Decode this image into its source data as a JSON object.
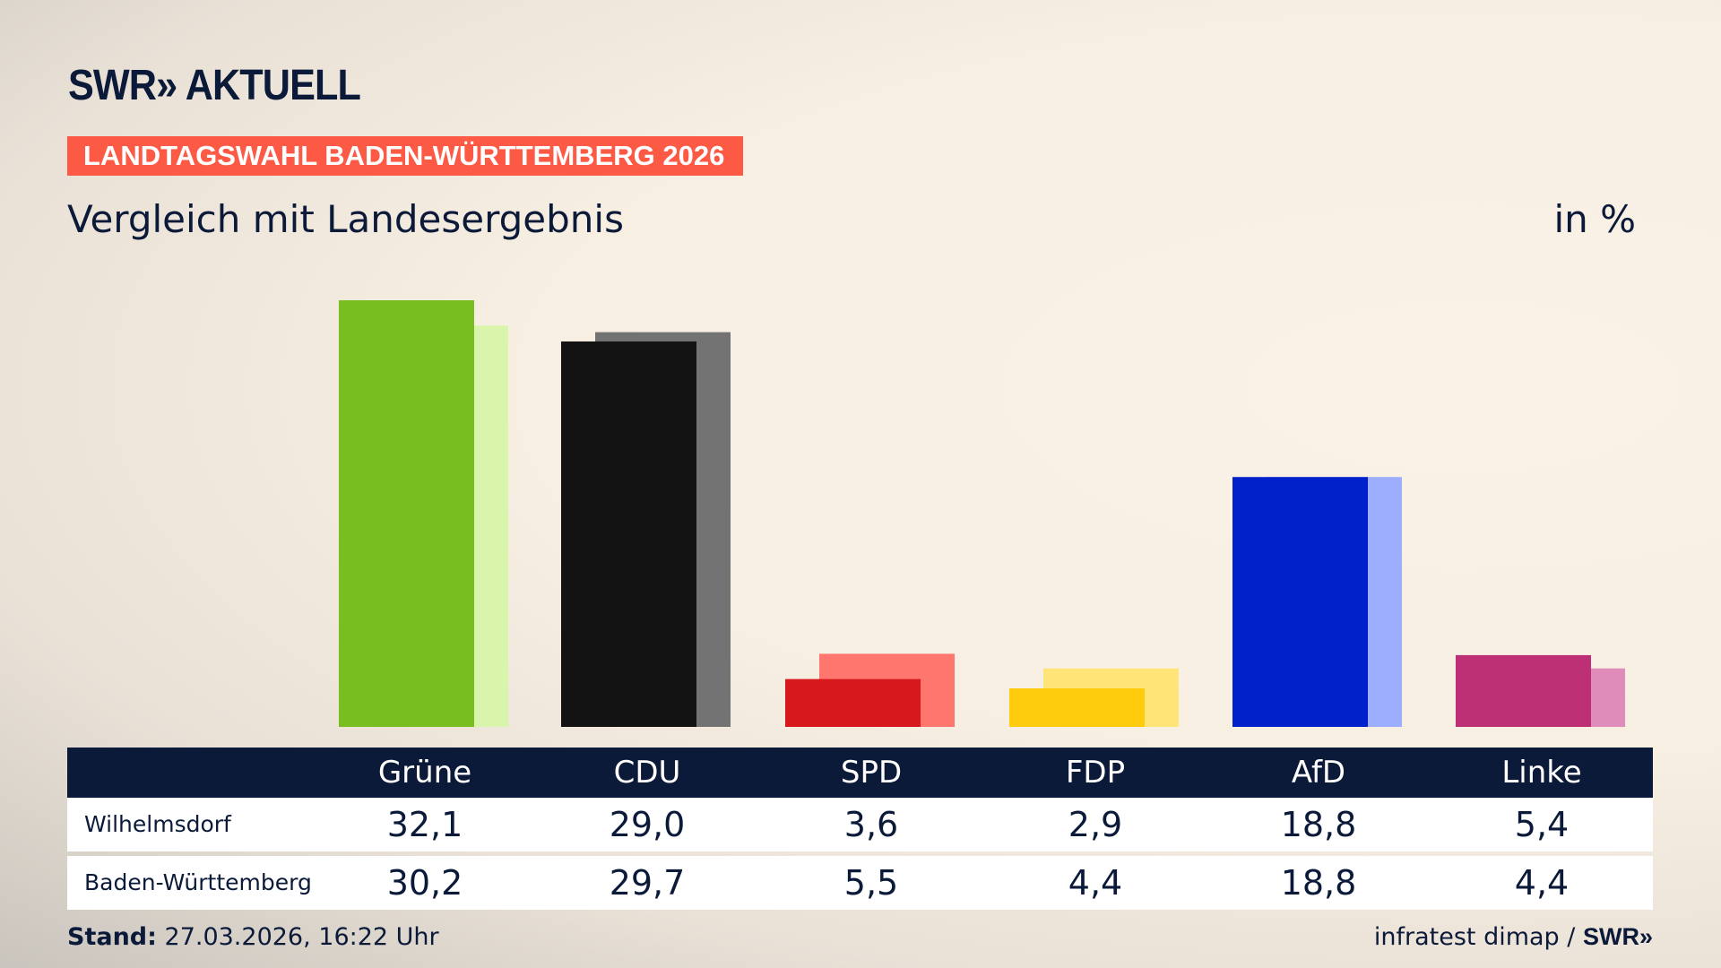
{
  "header": {
    "logo": "SWR» AKTUELL",
    "banner": "LANDTAGSWAHL BADEN-WÜRTTEMBERG 2026",
    "subtitle": "Vergleich mit Landesergebnis",
    "unit": "in %"
  },
  "chart_data": {
    "type": "bar",
    "categories": [
      "Grüne",
      "CDU",
      "SPD",
      "FDP",
      "AfD",
      "Linke"
    ],
    "series": [
      {
        "name": "Wilhelmsdorf",
        "values": [
          32.1,
          29.0,
          3.6,
          2.9,
          18.8,
          5.4
        ],
        "colors": [
          "#78be1e",
          "#131313",
          "#d7191e",
          "#ffcc0d",
          "#0020c9",
          "#be3075"
        ]
      },
      {
        "name": "Baden-Württemberg",
        "values": [
          30.2,
          29.7,
          5.5,
          4.4,
          18.8,
          4.4
        ],
        "colors": [
          "#d8f5ab",
          "#737373",
          "#ff766e",
          "#ffe477",
          "#9daeff",
          "#df8cba"
        ]
      }
    ],
    "ylim": [
      0,
      33
    ],
    "grid": false
  },
  "table": {
    "headers": [
      "Grüne",
      "CDU",
      "SPD",
      "FDP",
      "AfD",
      "Linke"
    ],
    "rows": [
      {
        "label": "Wilhelmsdorf",
        "values": [
          "32,1",
          "29,0",
          "3,6",
          "2,9",
          "18,8",
          "5,4"
        ]
      },
      {
        "label": "Baden-Württemberg",
        "values": [
          "30,2",
          "29,7",
          "5,5",
          "4,4",
          "18,8",
          "4,4"
        ]
      }
    ]
  },
  "footer": {
    "stand_label": "Stand:",
    "stand_value": "27.03.2026, 16:22 Uhr",
    "source": "infratest dimap /",
    "source_logo": "SWR»"
  },
  "colors": {
    "header_bg": "#0c1a3a",
    "banner": "#fd5a46"
  }
}
